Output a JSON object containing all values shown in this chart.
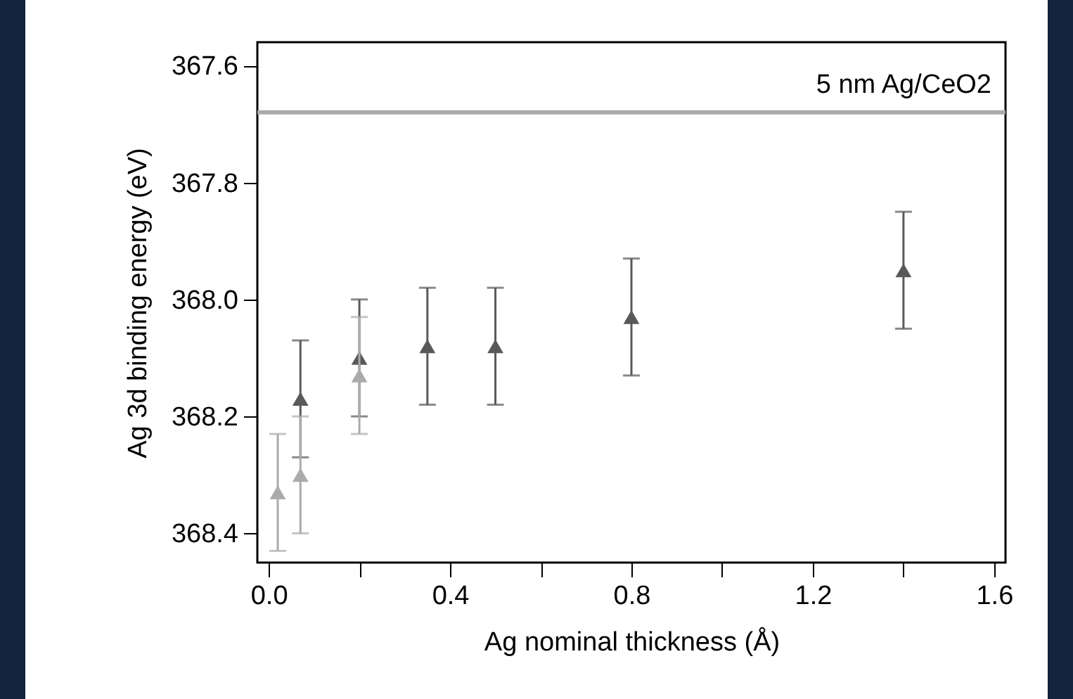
{
  "chart_data": {
    "type": "scatter",
    "xlabel": "Ag nominal thickness (Å)",
    "ylabel": "Ag 3d binding energy (eV)",
    "series": [
      {
        "color": "#595959",
        "x": [
          0.07,
          0.2,
          0.35,
          0.5,
          0.8,
          1.4
        ],
        "values": [
          368.17,
          368.1,
          368.08,
          368.08,
          368.03,
          367.95
        ],
        "errors": [
          0.1,
          0.1,
          0.1,
          0.1,
          0.1,
          0.1
        ]
      },
      {
        "color": "#ababab",
        "x": [
          0.02,
          0.07,
          0.2
        ],
        "values": [
          368.33,
          368.3,
          368.13
        ],
        "errors": [
          0.1,
          0.1,
          0.1
        ]
      }
    ],
    "xlim": [
      -0.025,
      1.625
    ],
    "xticks": [
      {
        "value": 0,
        "label": "0.0"
      },
      {
        "value": 0.2,
        "label": null
      },
      0.4,
      {
        "value": 0.6,
        "label": null
      },
      0.8,
      {
        "value": 1.0,
        "label": null
      },
      1.2,
      {
        "value": 1.4,
        "label": null
      },
      1.6
    ],
    "ylim": [
      368.45,
      367.56
    ],
    "yticks": [
      367.6,
      367.8,
      {
        "value": 368,
        "label": "368.0"
      },
      368.2,
      368.4
    ],
    "ref_lines": [
      {
        "axis": "y",
        "value": 367.68,
        "label": "5 nm Ag/CeO2",
        "color": "#aaaaaa"
      }
    ],
    "marker": "triangle",
    "grid": false
  }
}
